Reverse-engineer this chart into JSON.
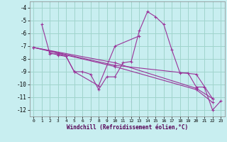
{
  "background_color": "#c8eef0",
  "grid_color": "#a0d4cc",
  "line_color": "#993399",
  "xlabel": "Windchill (Refroidissement éolien,°C)",
  "xlim": [
    -0.5,
    23.5
  ],
  "ylim": [
    -12.5,
    -3.5
  ],
  "yticks": [
    -12,
    -11,
    -10,
    -9,
    -8,
    -7,
    -6,
    -5,
    -4
  ],
  "xticks": [
    0,
    1,
    2,
    3,
    4,
    5,
    6,
    7,
    8,
    9,
    10,
    11,
    12,
    13,
    14,
    15,
    16,
    17,
    18,
    19,
    20,
    21,
    22,
    23
  ],
  "series": [
    [
      null,
      -5.3,
      -7.6,
      -7.6,
      -7.8,
      -9.0,
      -9.0,
      -9.2,
      -10.4,
      -9.4,
      -9.4,
      -8.3,
      -8.2,
      -5.8,
      -4.3,
      -4.7,
      -5.3,
      -7.3,
      -9.1,
      -9.1,
      -10.2,
      -10.2,
      -12.0,
      -11.3
    ],
    [
      null,
      null,
      -7.5,
      -7.7,
      -7.8,
      -9.0,
      null,
      null,
      -10.1,
      null,
      -7.0,
      null,
      null,
      -6.2,
      null,
      null,
      null,
      null,
      null,
      null,
      null,
      null,
      null,
      null
    ],
    [
      -7.1,
      null,
      null,
      null,
      null,
      null,
      null,
      null,
      null,
      null,
      -8.5,
      null,
      null,
      null,
      null,
      null,
      null,
      null,
      null,
      null,
      -9.2,
      null,
      -11.1,
      null
    ],
    [
      -7.1,
      null,
      null,
      null,
      null,
      null,
      null,
      null,
      null,
      null,
      -8.3,
      null,
      null,
      null,
      null,
      null,
      null,
      null,
      null,
      null,
      -10.3,
      null,
      -11.1,
      null
    ],
    [
      -7.1,
      null,
      null,
      null,
      null,
      null,
      null,
      null,
      null,
      null,
      -8.6,
      null,
      null,
      null,
      null,
      null,
      null,
      null,
      null,
      null,
      -10.4,
      null,
      -11.4,
      null
    ]
  ]
}
